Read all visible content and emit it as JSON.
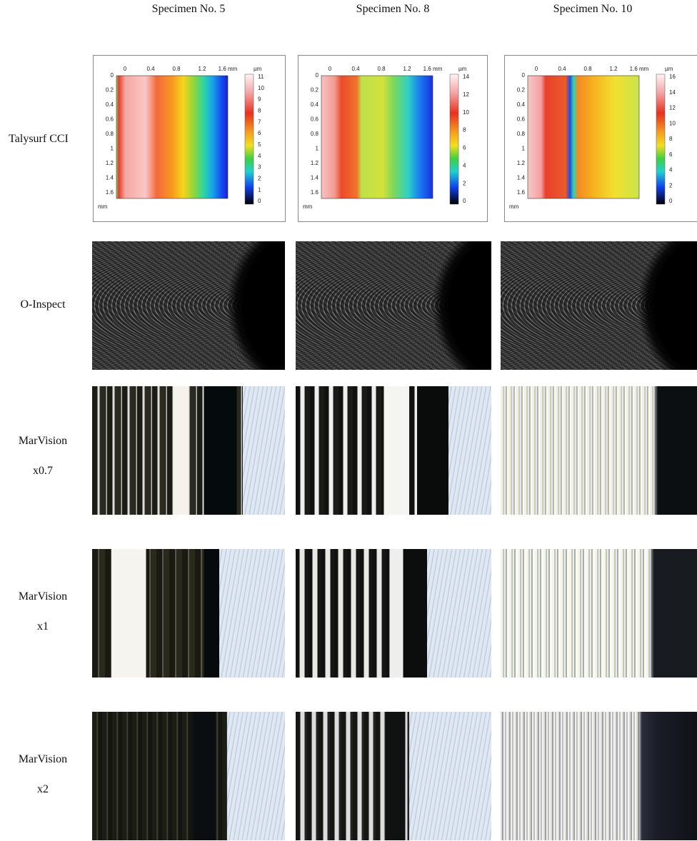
{
  "columns": [
    "Specimen No. 5",
    "Specimen No. 8",
    "Specimen No. 10"
  ],
  "rows": [
    {
      "label": [
        "Talysurf CCI"
      ]
    },
    {
      "label": [
        "O-Inspect"
      ]
    },
    {
      "label": [
        "MarVision",
        "x0.7"
      ]
    },
    {
      "label": [
        "MarVision",
        "x1"
      ]
    },
    {
      "label": [
        "MarVision",
        "x2"
      ]
    }
  ],
  "talysurf_plots": [
    {
      "x_ticks": [
        "0",
        "0.4",
        "0.8",
        "1.2",
        "1.6 mm"
      ],
      "y_ticks": [
        "0",
        "0.2",
        "0.4",
        "0.6",
        "0.8",
        "1",
        "1.2",
        "1.4",
        "1.6"
      ],
      "y_unit": "mm",
      "colorbar_unit": "µm",
      "colorbar_ticks": [
        "11",
        "10",
        "9",
        "8",
        "7",
        "6",
        "5",
        "4",
        "3",
        "2",
        "1",
        "0"
      ]
    },
    {
      "x_ticks": [
        "0",
        "0.4",
        "0.8",
        "1.2",
        "1.6 mm"
      ],
      "y_ticks": [
        "0",
        "0.2",
        "0.4",
        "0.6",
        "0.8",
        "1",
        "1.2",
        "1.4",
        "1.6"
      ],
      "y_unit": "mm",
      "colorbar_unit": "µm",
      "colorbar_ticks": [
        "14",
        "12",
        "10",
        "8",
        "6",
        "4",
        "2",
        "0"
      ]
    },
    {
      "x_ticks": [
        "0",
        "0.4",
        "0.8",
        "1.2",
        "1.6 mm"
      ],
      "y_ticks": [
        "0",
        "0.2",
        "0.4",
        "0.6",
        "0.8",
        "1",
        "1.2",
        "1.4",
        "1.6"
      ],
      "y_unit": "mm",
      "colorbar_unit": "µm",
      "colorbar_ticks": [
        "16",
        "14",
        "12",
        "10",
        "8",
        "6",
        "4",
        "2",
        "0"
      ]
    }
  ]
}
